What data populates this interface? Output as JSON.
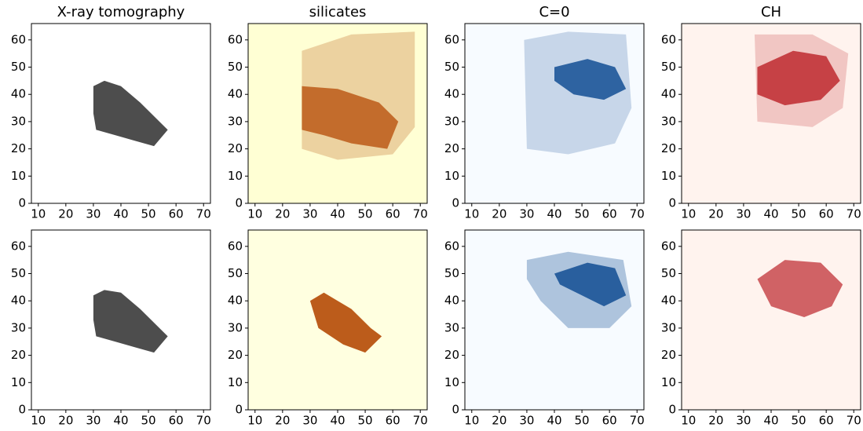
{
  "chart_data": [
    {
      "type": "heatmap",
      "title": "X-ray tomography",
      "colors": [
        "#ffffff",
        "#3a3a3a"
      ],
      "xlim": [
        7.5,
        72.5
      ],
      "ylim": [
        0,
        66
      ],
      "xticks": [
        10,
        20,
        30,
        40,
        50,
        60,
        70
      ],
      "yticks": [
        0,
        10,
        20,
        30,
        40,
        50,
        60
      ]
    },
    {
      "type": "heatmap",
      "title": "silicates",
      "colors": [
        "#ffffd4",
        "#b54a05"
      ],
      "xlim": [
        7.5,
        72.5
      ],
      "ylim": [
        0,
        66
      ],
      "xticks": [
        10,
        20,
        30,
        40,
        50,
        60,
        70
      ],
      "yticks": [
        0,
        10,
        20,
        30,
        40,
        50,
        60
      ]
    },
    {
      "type": "heatmap",
      "title": "C=0",
      "colors": [
        "#f7fbff",
        "#08468f"
      ],
      "xlim": [
        7.5,
        72.5
      ],
      "ylim": [
        0,
        66
      ],
      "xticks": [
        10,
        20,
        30,
        40,
        50,
        60,
        70
      ],
      "yticks": [
        0,
        10,
        20,
        30,
        40,
        50,
        60
      ]
    },
    {
      "type": "heatmap",
      "title": "CH",
      "colors": [
        "#fff3ee",
        "#b7141b"
      ],
      "xlim": [
        7.5,
        72.5
      ],
      "ylim": [
        0,
        66
      ],
      "xticks": [
        10,
        20,
        30,
        40,
        50,
        60,
        70
      ],
      "yticks": [
        0,
        10,
        20,
        30,
        40,
        50,
        60
      ]
    },
    {
      "type": "heatmap",
      "colors": [
        "#ffffff",
        "#3a3a3a"
      ],
      "xlim": [
        7.5,
        72.5
      ],
      "ylim": [
        0,
        66
      ],
      "xticks": [
        10,
        20,
        30,
        40,
        50,
        60,
        70
      ],
      "yticks": [
        0,
        10,
        20,
        30,
        40,
        50,
        60
      ]
    },
    {
      "type": "heatmap",
      "colors": [
        "#ffffe0",
        "#b54a05"
      ],
      "xlim": [
        7.5,
        72.5
      ],
      "ylim": [
        0,
        66
      ],
      "xticks": [
        10,
        20,
        30,
        40,
        50,
        60,
        70
      ],
      "yticks": [
        0,
        10,
        20,
        30,
        40,
        50,
        60
      ]
    },
    {
      "type": "heatmap",
      "colors": [
        "#f7fbff",
        "#08468f"
      ],
      "xlim": [
        7.5,
        72.5
      ],
      "ylim": [
        0,
        66
      ],
      "xticks": [
        10,
        20,
        30,
        40,
        50,
        60,
        70
      ],
      "yticks": [
        0,
        10,
        20,
        30,
        40,
        50,
        60
      ]
    },
    {
      "type": "heatmap",
      "colors": [
        "#fff3ee",
        "#b7141b"
      ],
      "xlim": [
        7.5,
        72.5
      ],
      "ylim": [
        0,
        66
      ],
      "xticks": [
        10,
        20,
        30,
        40,
        50,
        60,
        70
      ],
      "yticks": [
        0,
        10,
        20,
        30,
        40,
        50,
        60
      ]
    }
  ]
}
